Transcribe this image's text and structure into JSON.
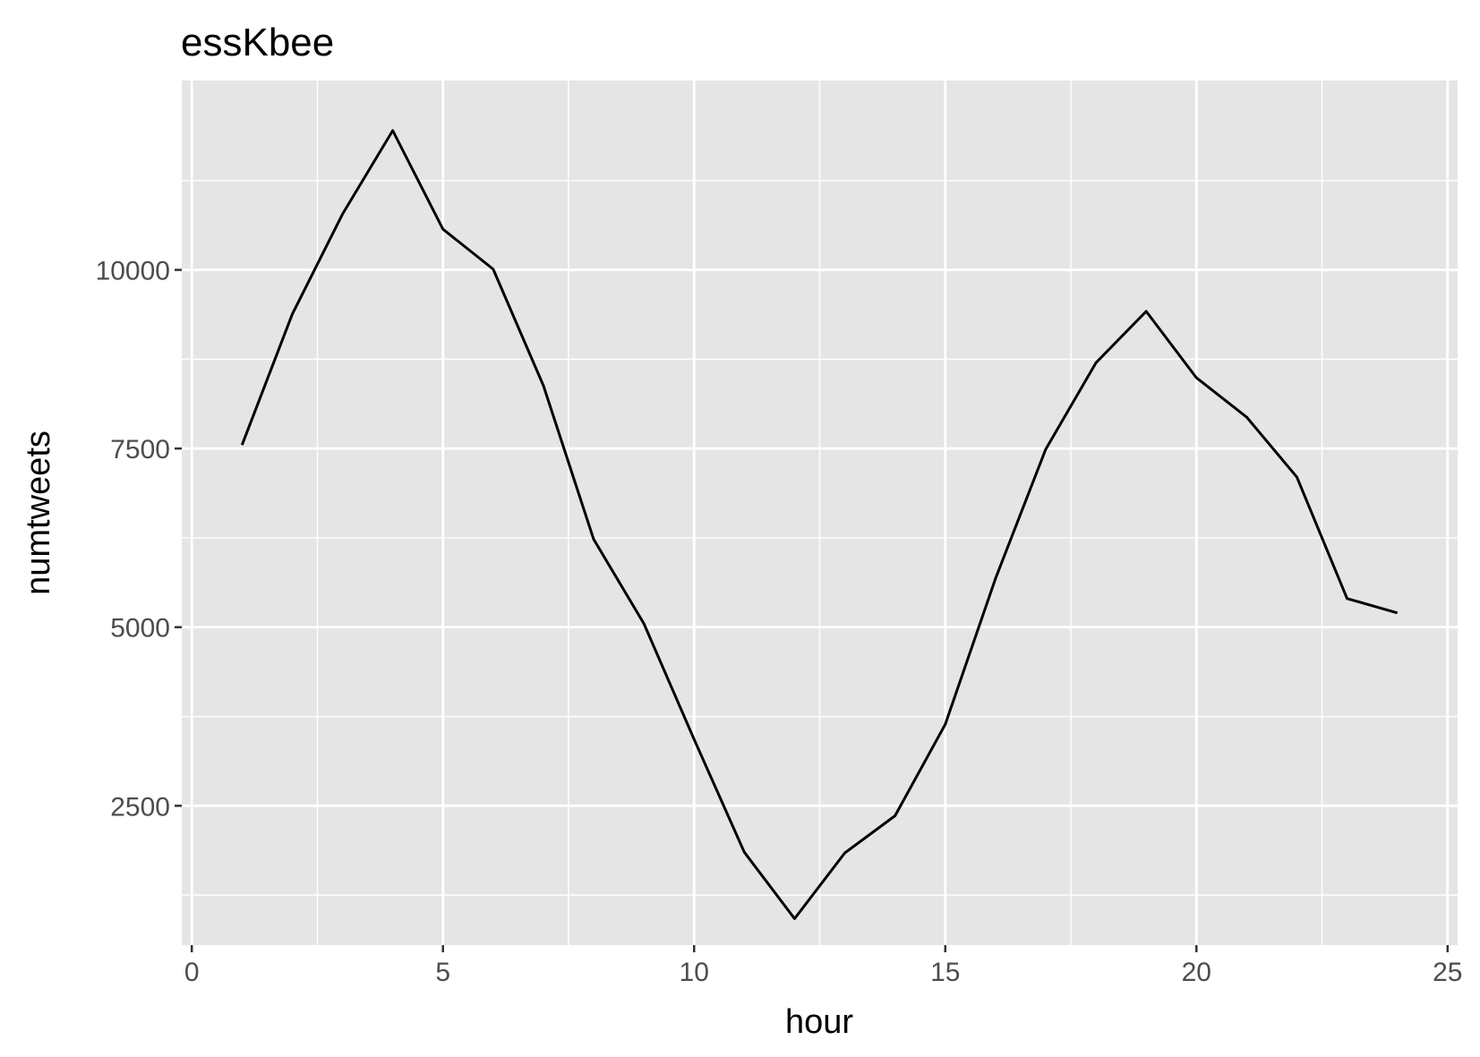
{
  "chart_data": {
    "type": "line",
    "title": "essKbee",
    "xlabel": "hour",
    "ylabel": "numtweets",
    "xlim": [
      -0.2,
      25.2
    ],
    "ylim": [
      550,
      12650
    ],
    "xticks": [
      0,
      5,
      10,
      15,
      20,
      25
    ],
    "yticks": [
      2500,
      5000,
      7500,
      10000
    ],
    "xtick_labels": [
      "0",
      "5",
      "10",
      "15",
      "20",
      "25"
    ],
    "ytick_labels": [
      "2500",
      "5000",
      "7500",
      "10000"
    ],
    "grid": true,
    "legend": "none",
    "colors": {
      "panel": "#e5e5e5",
      "grid": "#ffffff",
      "line": "#000000",
      "tick": "#4d4d4d"
    },
    "x": [
      1,
      2,
      3,
      4,
      5,
      6,
      7,
      8,
      9,
      10,
      11,
      12,
      13,
      14,
      15,
      16,
      17,
      18,
      19,
      20,
      21,
      22,
      23,
      24
    ],
    "series": [
      {
        "values": [
          7550,
          9380,
          10780,
          11950,
          10570,
          10010,
          8380,
          6230,
          5050,
          3430,
          1850,
          920,
          1840,
          2360,
          3640,
          5680,
          7490,
          8700,
          9420,
          8490,
          7940,
          7100,
          5400,
          5200
        ]
      }
    ]
  }
}
